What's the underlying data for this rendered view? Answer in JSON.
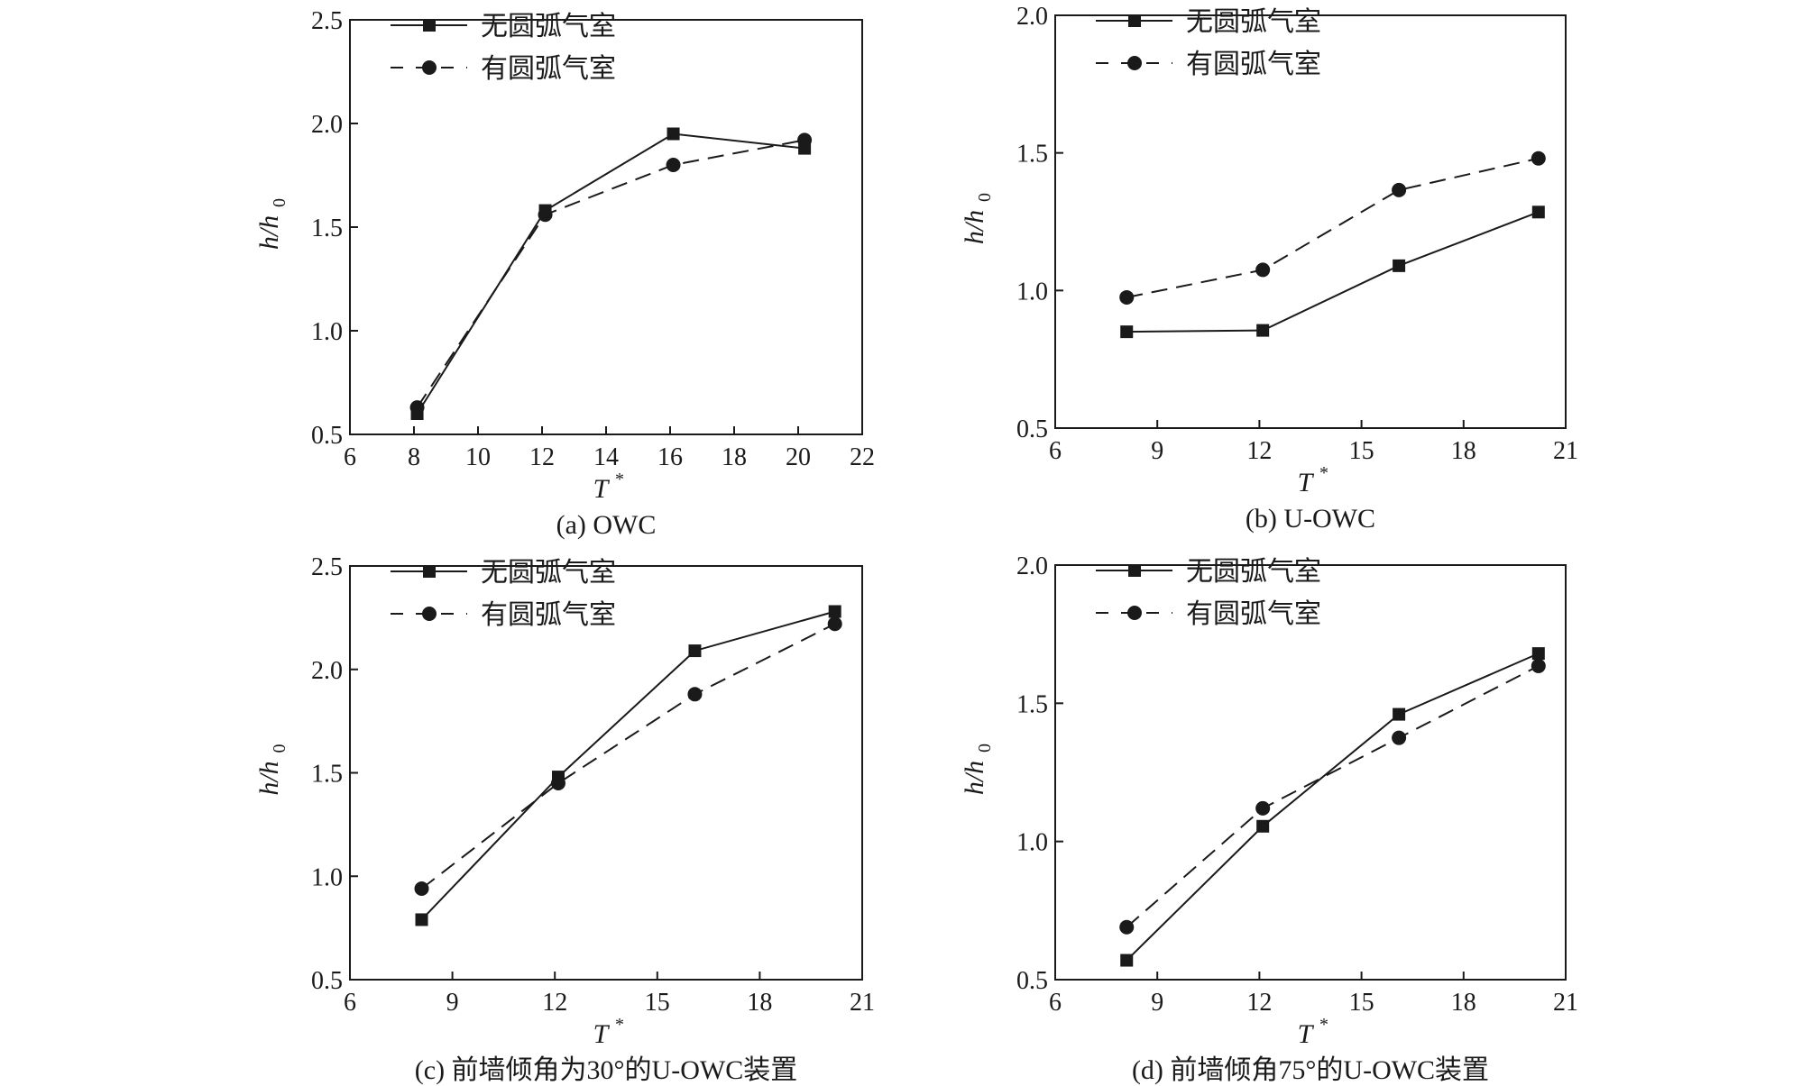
{
  "chart_data": [
    {
      "type": "line",
      "caption": "(a) OWC",
      "xlabel": "T",
      "xlabel_sup": "*",
      "ylabel": "h/h",
      "ylabel_sub": "0",
      "xlim": [
        6,
        22
      ],
      "xticks": [
        6,
        8,
        10,
        12,
        14,
        16,
        18,
        20,
        22
      ],
      "ylim": [
        0.5,
        2.5
      ],
      "yticks": [
        "0.5",
        "1.0",
        "1.5",
        "2.0",
        "2.5"
      ],
      "legend_position": "top-left",
      "series": [
        {
          "name": "无圆弧气室",
          "marker": "square",
          "dash": false,
          "x": [
            8.1,
            12.1,
            16.1,
            20.2
          ],
          "y": [
            0.6,
            1.58,
            1.95,
            1.88
          ]
        },
        {
          "name": "有圆弧气室",
          "marker": "circle",
          "dash": true,
          "x": [
            8.1,
            12.1,
            16.1,
            20.2
          ],
          "y": [
            0.63,
            1.56,
            1.8,
            1.92
          ]
        }
      ]
    },
    {
      "type": "line",
      "caption": "(b) U-OWC",
      "xlabel": "T",
      "xlabel_sup": "*",
      "ylabel": "h/h",
      "ylabel_sub": "0",
      "xlim": [
        6,
        21
      ],
      "xticks": [
        6,
        9,
        12,
        15,
        18,
        21
      ],
      "ylim": [
        0.5,
        2.0
      ],
      "yticks": [
        "0.5",
        "1.0",
        "1.5",
        "2.0"
      ],
      "legend_position": "top-left",
      "series": [
        {
          "name": "无圆弧气室",
          "marker": "square",
          "dash": false,
          "x": [
            8.1,
            12.1,
            16.1,
            20.2
          ],
          "y": [
            0.85,
            0.855,
            1.09,
            1.285
          ]
        },
        {
          "name": "有圆弧气室",
          "marker": "circle",
          "dash": true,
          "x": [
            8.1,
            12.1,
            16.1,
            20.2
          ],
          "y": [
            0.975,
            1.075,
            1.365,
            1.48
          ]
        }
      ]
    },
    {
      "type": "line",
      "caption": "(c) 前墙倾角为30°的U-OWC装置",
      "xlabel": "T",
      "xlabel_sup": "*",
      "ylabel": "h/h",
      "ylabel_sub": "0",
      "xlim": [
        6,
        21
      ],
      "xticks": [
        6,
        9,
        12,
        15,
        18,
        21
      ],
      "ylim": [
        0.5,
        2.5
      ],
      "yticks": [
        "0.5",
        "1.0",
        "1.5",
        "2.0",
        "2.5"
      ],
      "legend_position": "top-left",
      "series": [
        {
          "name": "无圆弧气室",
          "marker": "square",
          "dash": false,
          "x": [
            8.1,
            12.1,
            16.1,
            20.2
          ],
          "y": [
            0.79,
            1.48,
            2.09,
            2.28
          ]
        },
        {
          "name": "有圆弧气室",
          "marker": "circle",
          "dash": true,
          "x": [
            8.1,
            12.1,
            16.1,
            20.2
          ],
          "y": [
            0.94,
            1.45,
            1.88,
            2.22
          ]
        }
      ]
    },
    {
      "type": "line",
      "caption": "(d) 前墙倾角75°的U-OWC装置",
      "xlabel": "T",
      "xlabel_sup": "*",
      "ylabel": "h/h",
      "ylabel_sub": "0",
      "xlim": [
        6,
        21
      ],
      "xticks": [
        6,
        9,
        12,
        15,
        18,
        21
      ],
      "ylim": [
        0.5,
        2.0
      ],
      "yticks": [
        "0.5",
        "1.0",
        "1.5",
        "2.0"
      ],
      "legend_position": "top-left",
      "series": [
        {
          "name": "无圆弧气室",
          "marker": "square",
          "dash": false,
          "x": [
            8.1,
            12.1,
            16.1,
            20.2
          ],
          "y": [
            0.57,
            1.055,
            1.46,
            1.68
          ]
        },
        {
          "name": "有圆弧气室",
          "marker": "circle",
          "dash": true,
          "x": [
            8.1,
            12.1,
            16.1,
            20.2
          ],
          "y": [
            0.69,
            1.12,
            1.375,
            1.635
          ]
        }
      ]
    }
  ]
}
